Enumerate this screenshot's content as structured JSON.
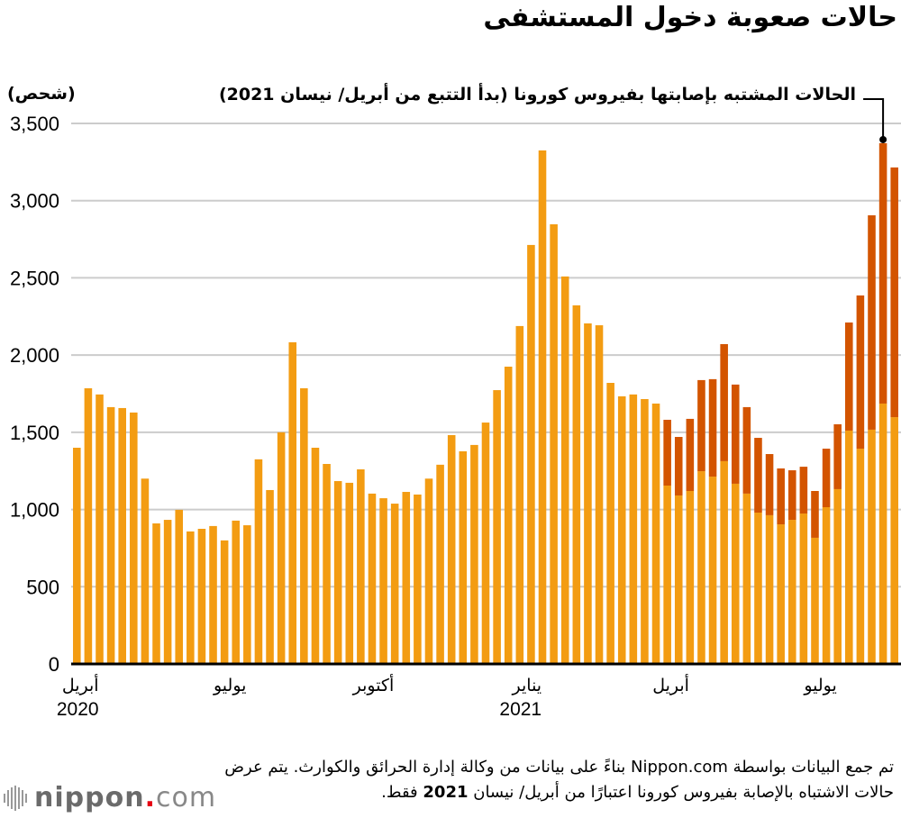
{
  "title": "حالات صعوبة دخول المستشفى",
  "unit_label": "(شحص)",
  "annotation": "الحالات المشتبه بإصابتها بفيروس كورونا (بدأ التتبع من أبريل/ نيسان 2021)",
  "note_line1": "تم جمع البيانات بواسطة Nippon.com بناءً على بيانات من وكالة إدارة الحرائق والكوارث. يتم عرض",
  "note_line2_a": "حالات الاشتباه بالإصابة بفيروس كورونا اعتبارًا من أبريل/ نيسان ",
  "note_line2_b": "2021",
  "note_line2_c": " فقط.",
  "logo": {
    "main": "nippon",
    "dot": ".",
    "suffix": "com"
  },
  "colors": {
    "confirmed": "#F39C12",
    "suspected": "#D35400",
    "grid": "#cccccc",
    "axis": "#000000"
  },
  "chart_data": {
    "type": "bar",
    "stacked": true,
    "title": "حالات صعوبة دخول المستشفى",
    "ylabel": "(شحص)",
    "ylim": [
      0,
      3500
    ],
    "yticks": [
      0,
      500,
      1000,
      1500,
      2000,
      2500,
      3000,
      3500
    ],
    "ytick_labels": [
      "0",
      "500",
      "1,000",
      "1,500",
      "2,000",
      "2,500",
      "3,000",
      "3,500"
    ],
    "grid": true,
    "x_tick_labels": [
      {
        "index": 1,
        "label": "أبريل",
        "year": "2020"
      },
      {
        "index": 14,
        "label": "يوليو",
        "year": ""
      },
      {
        "index": 27,
        "label": "أكتوبر",
        "year": ""
      },
      {
        "index": 40,
        "label": "يناير",
        "year": "2021"
      },
      {
        "index": 53,
        "label": "أبريل",
        "year": ""
      },
      {
        "index": 66,
        "label": "يوليو",
        "year": ""
      }
    ],
    "series": [
      {
        "name": "حالات صعوبة دخول المستشفى",
        "values": [
          1400,
          1785,
          1745,
          1663,
          1657,
          1628,
          1200,
          910,
          933,
          998,
          858,
          875,
          893,
          800,
          928,
          898,
          1325,
          1126,
          1500,
          2083,
          1785,
          1400,
          1295,
          1184,
          1173,
          1260,
          1103,
          1073,
          1038,
          1114,
          1097,
          1200,
          1290,
          1482,
          1377,
          1418,
          1563,
          1773,
          1925,
          2188,
          2713,
          3325,
          2847,
          2509,
          2322,
          2205,
          2193,
          1820,
          1733,
          1745,
          1715,
          1686,
          1155,
          1091,
          1120,
          1248,
          1213,
          1313,
          1167,
          1103,
          980,
          963,
          904,
          933,
          974,
          817,
          1015,
          1132,
          1511,
          1394,
          1517,
          1686,
          1598
        ]
      },
      {
        "name": "الحالات المشتبه بإصابتها بفيروس كورونا",
        "values": [
          0,
          0,
          0,
          0,
          0,
          0,
          0,
          0,
          0,
          0,
          0,
          0,
          0,
          0,
          0,
          0,
          0,
          0,
          0,
          0,
          0,
          0,
          0,
          0,
          0,
          0,
          0,
          0,
          0,
          0,
          0,
          0,
          0,
          0,
          0,
          0,
          0,
          0,
          0,
          0,
          0,
          0,
          0,
          0,
          0,
          0,
          0,
          0,
          0,
          0,
          0,
          0,
          426,
          379,
          467,
          590,
          631,
          758,
          642,
          560,
          484,
          396,
          362,
          321,
          303,
          303,
          379,
          420,
          700,
          992,
          1388,
          1686,
          1617
        ]
      }
    ]
  }
}
